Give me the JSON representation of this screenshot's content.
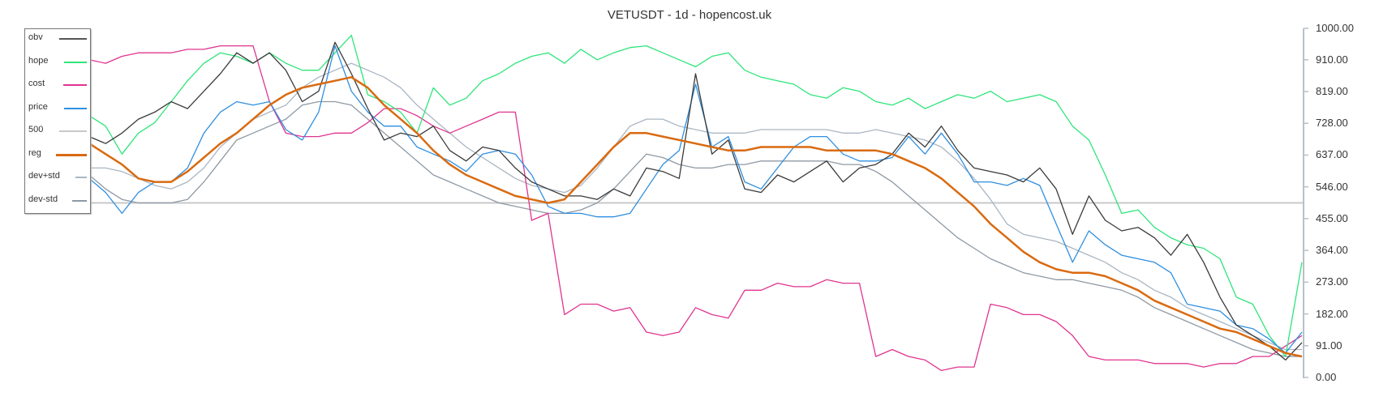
{
  "title": "VETUSDT - 1d - hopencost.uk",
  "legend": [
    {
      "label": "obv",
      "color": "#555555"
    },
    {
      "label": "hope",
      "color": "#2ee57a"
    },
    {
      "label": "cost",
      "color": "#e0348f"
    },
    {
      "label": "price",
      "color": "#2f8fe0"
    },
    {
      "label": "500",
      "color": "#c8c8c8"
    },
    {
      "label": "reg",
      "color": "#d96a10"
    },
    {
      "label": "dev+std",
      "color": "#aab6c2"
    },
    {
      "label": "dev-std",
      "color": "#8e99a4"
    }
  ],
  "y_axis": {
    "ticks": [
      "1000.00",
      "910.00",
      "819.00",
      "728.00",
      "637.00",
      "546.00",
      "455.00",
      "364.00",
      "273.00",
      "182.00",
      "91.00",
      "0.00"
    ]
  },
  "chart_data": {
    "type": "line",
    "title": "VETUSDT - 1d - hopencost.uk",
    "xlabel": "",
    "ylabel": "",
    "ylim": [
      0,
      1000
    ],
    "y_ticks": [
      1000,
      910,
      819,
      728,
      637,
      546,
      455,
      364,
      273,
      182,
      91,
      0
    ],
    "y_axis_position": "right",
    "legend_position": "top-left",
    "grid": false,
    "horizontal_reference_line": 500,
    "x_index_count": 75,
    "series": [
      {
        "name": "obv",
        "color": "#3a3a3a",
        "values": [
          690,
          670,
          700,
          740,
          760,
          790,
          770,
          820,
          870,
          930,
          900,
          930,
          880,
          790,
          820,
          960,
          870,
          770,
          680,
          700,
          690,
          720,
          650,
          620,
          660,
          650,
          600,
          560,
          540,
          520,
          520,
          510,
          540,
          520,
          600,
          590,
          570,
          870,
          640,
          680,
          540,
          530,
          580,
          560,
          590,
          620,
          560,
          600,
          610,
          640,
          700,
          660,
          720,
          650,
          600,
          590,
          580,
          560,
          600,
          540,
          410,
          520,
          450,
          420,
          430,
          400,
          350,
          410,
          330,
          230,
          150,
          120,
          90,
          50,
          100
        ]
      },
      {
        "name": "hope",
        "color": "#2ee57a",
        "values": [
          750,
          720,
          640,
          700,
          730,
          790,
          850,
          900,
          930,
          920,
          900,
          930,
          900,
          880,
          880,
          930,
          980,
          810,
          790,
          760,
          700,
          830,
          780,
          800,
          850,
          870,
          900,
          920,
          930,
          900,
          940,
          910,
          930,
          945,
          950,
          930,
          910,
          890,
          920,
          930,
          880,
          860,
          850,
          840,
          810,
          800,
          830,
          820,
          790,
          780,
          800,
          770,
          790,
          810,
          800,
          820,
          790,
          800,
          810,
          790,
          720,
          680,
          580,
          470,
          480,
          430,
          400,
          380,
          370,
          340,
          230,
          210,
          120,
          60,
          330
        ]
      },
      {
        "name": "cost",
        "color": "#e0348f",
        "values": [
          910,
          900,
          920,
          930,
          930,
          930,
          940,
          940,
          950,
          950,
          950,
          790,
          700,
          690,
          690,
          700,
          700,
          730,
          770,
          770,
          750,
          720,
          700,
          720,
          740,
          760,
          760,
          450,
          470,
          180,
          210,
          210,
          190,
          200,
          130,
          120,
          130,
          200,
          180,
          170,
          250,
          250,
          270,
          260,
          260,
          280,
          270,
          270,
          60,
          80,
          60,
          50,
          20,
          30,
          30,
          210,
          200,
          180,
          180,
          160,
          120,
          60,
          50,
          50,
          50,
          40,
          40,
          40,
          30,
          40,
          40,
          60,
          60,
          90,
          120
        ]
      },
      {
        "name": "price",
        "color": "#2f8fe0",
        "values": [
          570,
          530,
          470,
          530,
          560,
          560,
          600,
          700,
          760,
          790,
          780,
          790,
          710,
          680,
          760,
          950,
          820,
          760,
          720,
          720,
          660,
          640,
          620,
          590,
          640,
          650,
          640,
          580,
          490,
          470,
          470,
          460,
          460,
          470,
          540,
          610,
          650,
          840,
          660,
          690,
          560,
          540,
          600,
          660,
          690,
          690,
          640,
          620,
          620,
          630,
          690,
          640,
          700,
          640,
          560,
          560,
          550,
          570,
          550,
          440,
          330,
          420,
          380,
          350,
          340,
          330,
          300,
          210,
          200,
          190,
          150,
          140,
          110,
          70,
          130
        ]
      },
      {
        "name": "500",
        "color": "#c8c8c8",
        "values": [
          500,
          500,
          500,
          500,
          500,
          500,
          500,
          500,
          500,
          500,
          500,
          500,
          500,
          500,
          500,
          500,
          500,
          500,
          500,
          500,
          500,
          500,
          500,
          500,
          500,
          500,
          500,
          500,
          500,
          500,
          500,
          500,
          500,
          500,
          500,
          500,
          500,
          500,
          500,
          500,
          500,
          500,
          500,
          500,
          500,
          500,
          500,
          500,
          500,
          500,
          500,
          500,
          500,
          500,
          500,
          500,
          500,
          500,
          500,
          500,
          500,
          500,
          500,
          500,
          500,
          500,
          500,
          500,
          500,
          500,
          500,
          500,
          500,
          500,
          500
        ]
      },
      {
        "name": "reg",
        "color": "#d96a10",
        "values": [
          670,
          640,
          610,
          570,
          560,
          560,
          590,
          630,
          670,
          700,
          740,
          780,
          810,
          830,
          840,
          850,
          860,
          830,
          780,
          740,
          700,
          650,
          610,
          580,
          560,
          540,
          520,
          510,
          500,
          510,
          560,
          610,
          660,
          700,
          700,
          690,
          680,
          670,
          660,
          650,
          650,
          660,
          660,
          660,
          660,
          650,
          650,
          650,
          650,
          640,
          620,
          600,
          570,
          530,
          490,
          440,
          400,
          360,
          330,
          310,
          300,
          300,
          290,
          270,
          250,
          220,
          200,
          180,
          160,
          140,
          130,
          110,
          90,
          70,
          60
        ]
      },
      {
        "name": "dev+std",
        "color": "#aab6c2",
        "values": [
          600,
          600,
          590,
          570,
          550,
          540,
          560,
          600,
          660,
          700,
          740,
          760,
          780,
          830,
          860,
          880,
          900,
          880,
          860,
          830,
          780,
          740,
          700,
          660,
          630,
          600,
          570,
          550,
          540,
          530,
          550,
          600,
          660,
          720,
          740,
          740,
          720,
          710,
          700,
          700,
          700,
          710,
          710,
          710,
          710,
          710,
          700,
          700,
          710,
          700,
          690,
          680,
          660,
          620,
          570,
          510,
          440,
          410,
          400,
          390,
          370,
          350,
          330,
          300,
          280,
          250,
          230,
          200,
          180,
          160,
          140,
          120,
          100,
          80,
          80
        ]
      },
      {
        "name": "dev-std",
        "color": "#8e99a4",
        "values": [
          580,
          540,
          510,
          500,
          500,
          500,
          510,
          560,
          620,
          680,
          700,
          720,
          740,
          780,
          790,
          790,
          780,
          740,
          700,
          660,
          620,
          580,
          560,
          540,
          520,
          500,
          490,
          480,
          470,
          470,
          480,
          500,
          540,
          590,
          640,
          630,
          610,
          600,
          600,
          610,
          610,
          620,
          620,
          620,
          620,
          620,
          610,
          610,
          590,
          560,
          520,
          480,
          440,
          400,
          370,
          340,
          320,
          300,
          290,
          280,
          280,
          270,
          260,
          250,
          230,
          200,
          180,
          160,
          140,
          120,
          100,
          80,
          70,
          60,
          60
        ]
      }
    ]
  }
}
